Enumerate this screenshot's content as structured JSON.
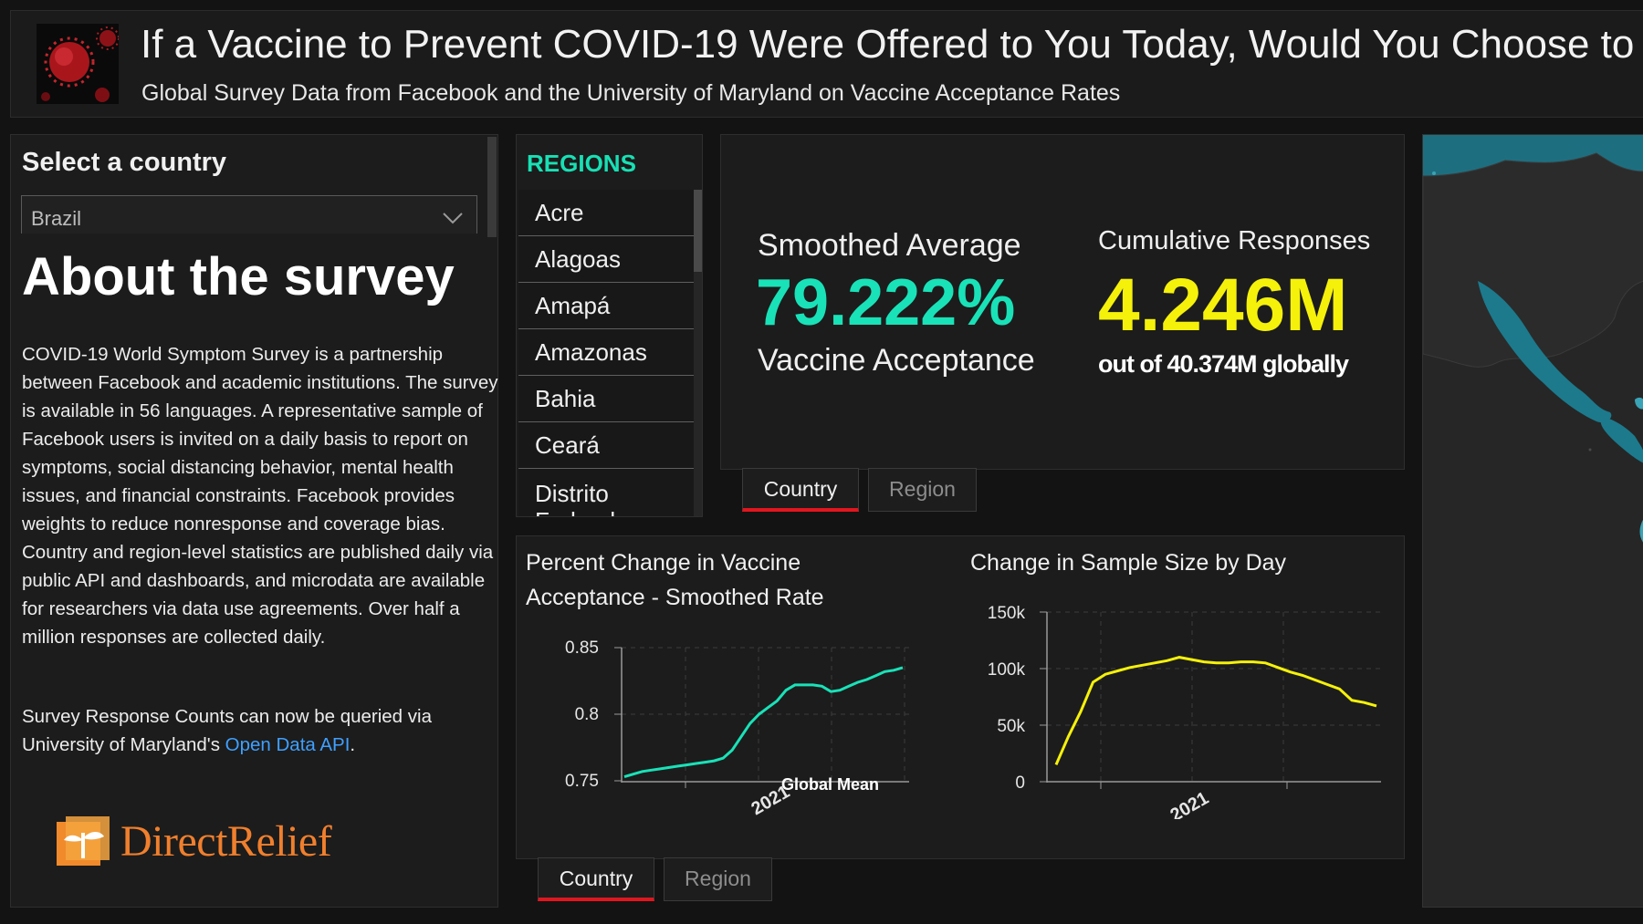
{
  "header": {
    "title": "If a Vaccine to Prevent COVID-19 Were Offered to You Today, Would You Choose to",
    "subtitle": "Global Survey Data from Facebook and the University of Maryland on Vaccine Acceptance Rates"
  },
  "sidebar": {
    "select_label": "Select a country",
    "selected_country": "Brazil",
    "about_title": "About the survey",
    "about_body": "COVID-19 World Symptom Survey is a partnership between Facebook and academic institutions. The survey is available in 56 languages. A representative sample of Facebook users is invited on a daily basis to report on symptoms, social distancing behavior, mental health issues, and financial constraints. Facebook provides weights to reduce nonresponse and coverage bias. Country and region-level statistics are published daily via public API and dashboards, and microdata are available for researchers via data use agreements. Over half a million responses are collected daily.",
    "api_text_before": "Survey Response Counts can now be queried via University of Maryland's ",
    "api_link": "Open Data API",
    "api_text_after": ".",
    "logo_text": "DirectRelief"
  },
  "regions": {
    "title": "REGIONS",
    "items": [
      "Acre",
      "Alagoas",
      "Amapá",
      "Amazonas",
      "Bahia",
      "Ceará",
      "Distrito Federal"
    ]
  },
  "stats": {
    "avg_label": "Smoothed Average",
    "avg_value": "79.222%",
    "avg_sub": "Vaccine Acceptance",
    "cum_label": "Cumulative Responses",
    "cum_value": "4.246M",
    "cum_sub": "out of 40.374M globally"
  },
  "tabs_top": {
    "country": "Country",
    "region": "Region",
    "active": "Country"
  },
  "tabs_bottom": {
    "country": "Country",
    "region": "Region",
    "active": "Country"
  },
  "colors": {
    "teal": "#19e2b8",
    "yellow": "#f5f10a",
    "tab_active": "#e0161f",
    "link": "#3fa0ff",
    "brand": "#f07f2d"
  },
  "chart_data": [
    {
      "type": "line",
      "title": "Percent Change in Vaccine Acceptance - Smoothed Rate",
      "x_tick_labels": [
        "2021"
      ],
      "y_ticks": [
        "0.85",
        "0.8",
        "0.75"
      ],
      "ylim": [
        0.75,
        0.85
      ],
      "annotation": "Global Mean",
      "grid": true,
      "series": [
        {
          "color": "#19e2b8",
          "values": [
            0.753,
            0.755,
            0.757,
            0.758,
            0.759,
            0.76,
            0.761,
            0.762,
            0.763,
            0.764,
            0.765,
            0.767,
            0.773,
            0.783,
            0.793,
            0.8,
            0.805,
            0.81,
            0.818,
            0.822,
            0.822,
            0.822,
            0.821,
            0.817,
            0.818,
            0.821,
            0.824,
            0.826,
            0.829,
            0.832,
            0.833,
            0.835
          ]
        }
      ]
    },
    {
      "type": "line",
      "title": "Change in Sample Size by Day",
      "x_tick_labels": [
        "2021"
      ],
      "y_ticks": [
        "150k",
        "100k",
        "50k",
        "0"
      ],
      "ylim": [
        0,
        150000
      ],
      "grid": true,
      "series": [
        {
          "color": "#f5f10a",
          "values": [
            15000,
            40000,
            62000,
            88000,
            95000,
            98000,
            101000,
            103000,
            105000,
            107000,
            110000,
            108000,
            106000,
            105000,
            105000,
            106000,
            106000,
            105000,
            101000,
            97000,
            94000,
            90000,
            86000,
            82000,
            72000,
            70000,
            67000
          ]
        }
      ]
    }
  ]
}
